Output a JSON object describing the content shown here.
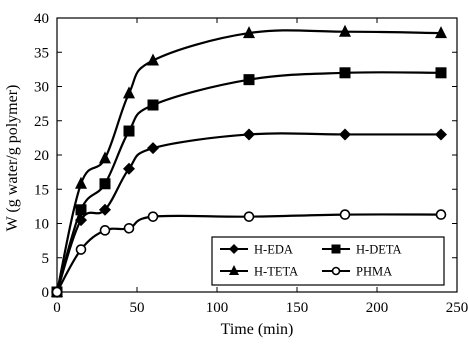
{
  "chart_data": {
    "type": "line",
    "xlabel": "Time (min)",
    "ylabel": "W (g water/g polymer)",
    "xlim": [
      0,
      250
    ],
    "ylim": [
      0,
      40
    ],
    "xticks": [
      "0",
      "50",
      "100",
      "150",
      "200",
      "250"
    ],
    "yticks": [
      "0",
      "5",
      "10",
      "15",
      "20",
      "25",
      "30",
      "35",
      "40"
    ],
    "grid": false,
    "legend_position": "bottom-right",
    "series": [
      {
        "name": "H-EDA",
        "marker": "diamond",
        "x": [
          0,
          15,
          30,
          45,
          60,
          120,
          180,
          240
        ],
        "y": [
          0,
          10.5,
          12,
          18,
          21,
          23,
          23,
          23
        ]
      },
      {
        "name": "H-DETA",
        "marker": "square",
        "x": [
          0,
          15,
          30,
          45,
          60,
          120,
          180,
          240
        ],
        "y": [
          0,
          12,
          15.8,
          23.5,
          27.3,
          31,
          32,
          32
        ]
      },
      {
        "name": "H-TETA",
        "marker": "triangle",
        "x": [
          0,
          15,
          30,
          45,
          60,
          120,
          180,
          240
        ],
        "y": [
          0,
          15.8,
          19.5,
          29,
          33.8,
          37.8,
          38,
          37.8
        ]
      },
      {
        "name": "PHMA",
        "marker": "open-circle",
        "x": [
          0,
          15,
          30,
          45,
          60,
          120,
          180,
          240
        ],
        "y": [
          0,
          6.2,
          9,
          9.3,
          11,
          11,
          11.3,
          11.3
        ]
      }
    ]
  }
}
